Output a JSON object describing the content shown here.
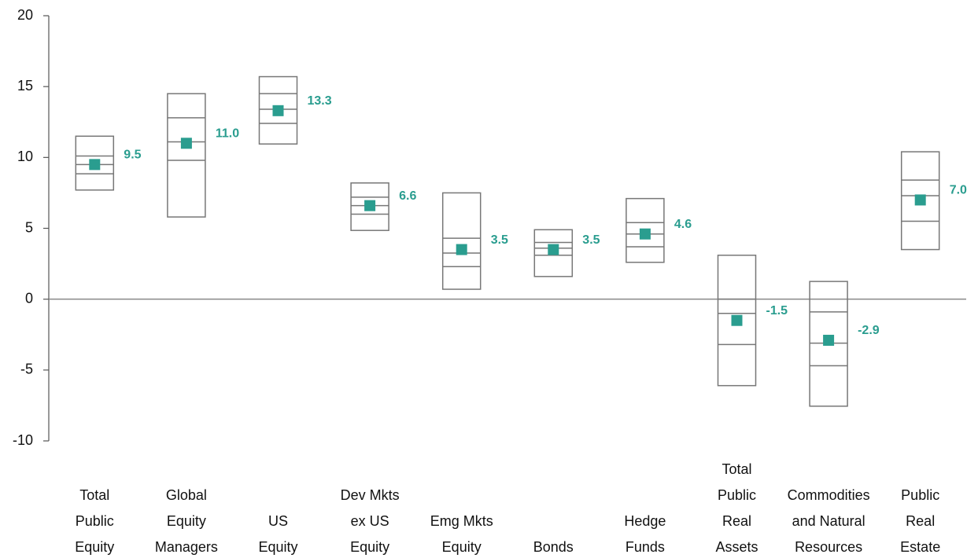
{
  "chart_data": {
    "type": "box",
    "categories": [
      [
        "Total",
        "Public",
        "Equity"
      ],
      [
        "Global",
        "Equity",
        "Managers"
      ],
      [
        "US",
        "Equity"
      ],
      [
        "Dev Mkts",
        "ex US",
        "Equity"
      ],
      [
        "Emg Mkts",
        "Equity"
      ],
      [
        "Bonds"
      ],
      [
        "Hedge",
        "Funds"
      ],
      [
        "Total",
        "Public",
        "Real",
        "Assets"
      ],
      [
        "Commodities",
        "and Natural",
        "Resources"
      ],
      [
        "Public",
        "Real",
        "Estate"
      ]
    ],
    "values": [
      9.5,
      11.0,
      13.3,
      6.6,
      3.5,
      3.5,
      4.6,
      -1.5,
      -2.9,
      7.0
    ],
    "value_labels": [
      "9.5",
      "11.0",
      "13.3",
      "6.6",
      "3.5",
      "3.5",
      "4.6",
      "-1.5",
      "-2.9",
      "7.0"
    ],
    "box_top": [
      11.5,
      14.5,
      15.7,
      8.2,
      7.5,
      4.9,
      7.1,
      3.1,
      1.25,
      10.4
    ],
    "box_upper": [
      10.1,
      12.8,
      14.5,
      7.2,
      4.3,
      4.0,
      5.4,
      0.0,
      -0.9,
      8.4
    ],
    "box_median": [
      9.5,
      11.1,
      13.4,
      6.6,
      3.25,
      3.6,
      4.6,
      -1.0,
      -3.1,
      7.3
    ],
    "box_lower": [
      8.85,
      9.8,
      12.4,
      6.0,
      2.3,
      3.1,
      3.7,
      -3.2,
      -4.7,
      5.5
    ],
    "box_bottom": [
      7.7,
      5.8,
      10.95,
      4.85,
      0.7,
      1.6,
      2.6,
      -6.1,
      -7.55,
      3.5
    ],
    "color": "#2a9d8f",
    "ylim": [
      -10,
      20
    ],
    "yticks": [
      -10,
      -5,
      0,
      5,
      10,
      15,
      20
    ]
  }
}
